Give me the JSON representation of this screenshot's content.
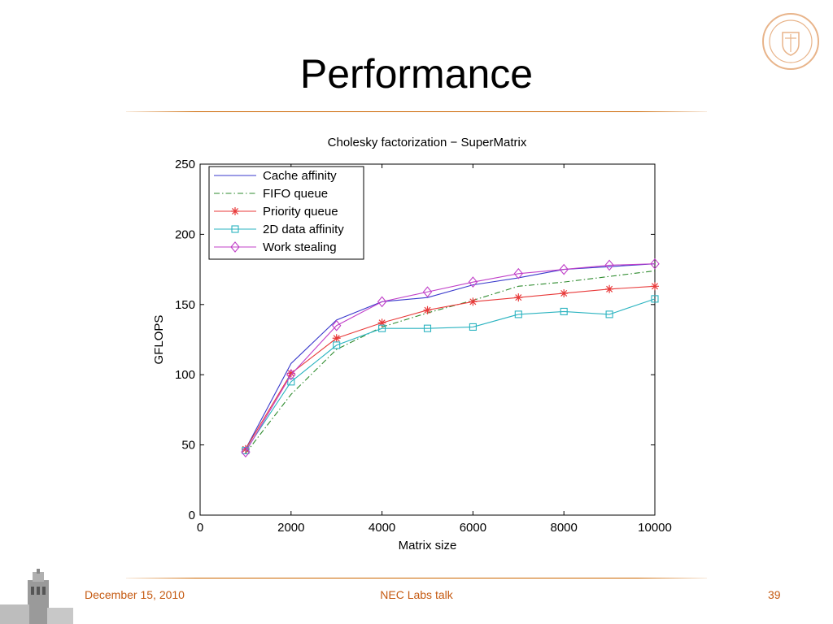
{
  "slide": {
    "title": "Performance",
    "footer_left": "December 15, 2010",
    "footer_center": "NEC Labs talk",
    "footer_right": "39",
    "accent_color": "#cc6600",
    "footer_color": "#c55a11"
  },
  "chart_data": {
    "type": "line",
    "title": "Cholesky factorization − SuperMatrix",
    "xlabel": "Matrix size",
    "ylabel": "GFLOPS",
    "xlim": [
      0,
      10000
    ],
    "ylim": [
      0,
      250
    ],
    "xticks": [
      0,
      2000,
      4000,
      6000,
      8000,
      10000
    ],
    "yticks": [
      0,
      50,
      100,
      150,
      200,
      250
    ],
    "grid": false,
    "legend_position": "top-left",
    "x": [
      1000,
      2000,
      3000,
      4000,
      5000,
      6000,
      7000,
      8000,
      9000,
      10000
    ],
    "series": [
      {
        "name": "Cache affinity",
        "color": "#3a3acc",
        "dash": "",
        "marker": "none",
        "values": [
          47,
          108,
          139,
          152,
          155,
          164,
          169,
          175,
          177,
          179
        ]
      },
      {
        "name": "FIFO queue",
        "color": "#2e8b2e",
        "dash": "7,3,1.5,3",
        "marker": "none",
        "values": [
          44,
          86,
          118,
          134,
          144,
          153,
          163,
          166,
          170,
          174
        ]
      },
      {
        "name": "Priority queue",
        "color": "#e83a3a",
        "dash": "",
        "marker": "star",
        "values": [
          47,
          101,
          126,
          137,
          146,
          152,
          155,
          158,
          161,
          163
        ]
      },
      {
        "name": "2D data affinity",
        "color": "#2ab3c0",
        "dash": "",
        "marker": "square",
        "values": [
          46,
          95,
          121,
          133,
          133,
          134,
          143,
          145,
          143,
          154
        ]
      },
      {
        "name": "Work stealing",
        "color": "#c040c8",
        "dash": "",
        "marker": "diamond",
        "values": [
          45,
          100,
          135,
          152,
          159,
          166,
          172,
          175,
          178,
          179
        ]
      }
    ]
  }
}
